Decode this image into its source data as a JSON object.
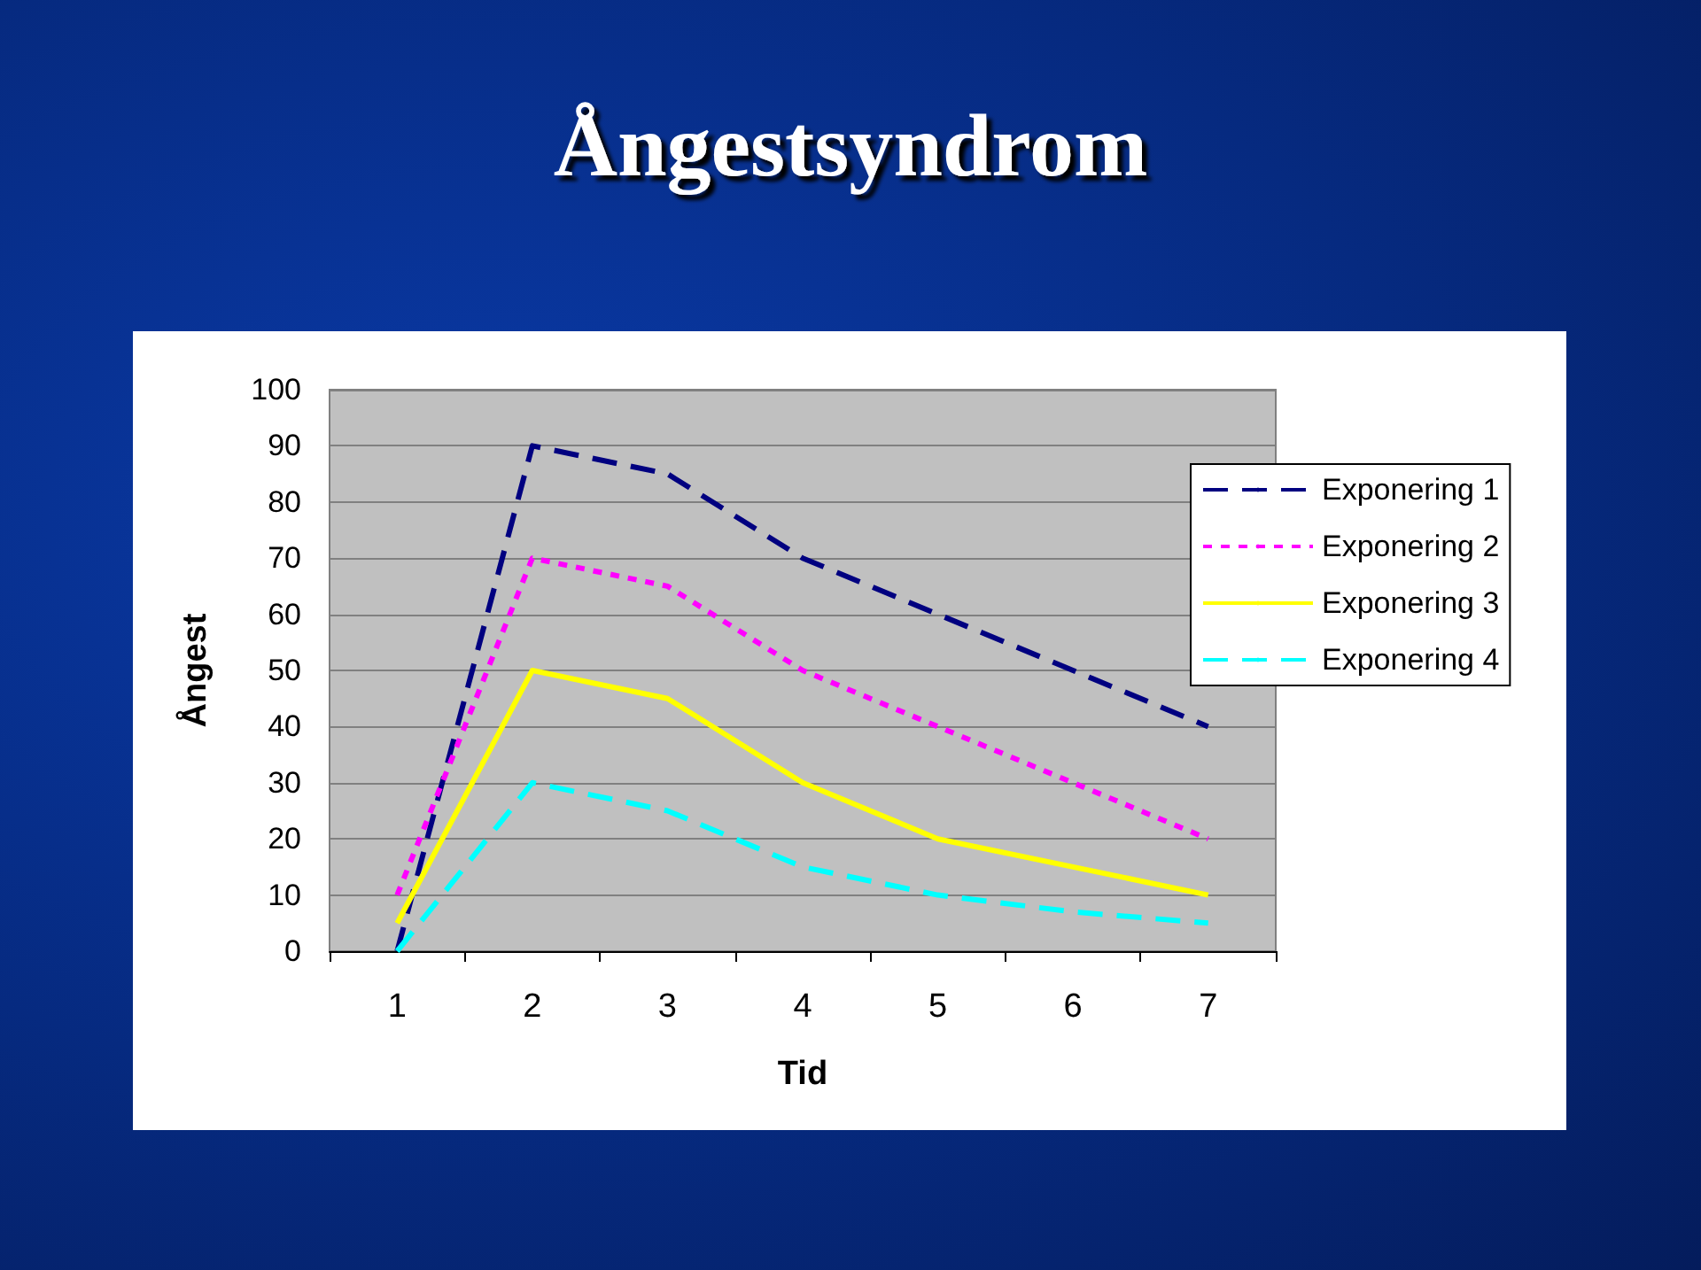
{
  "chart_data": {
    "type": "line",
    "title": "Ångestsyndrom",
    "xlabel": "Tid",
    "ylabel": "Ångest",
    "categories": [
      "1",
      "2",
      "3",
      "4",
      "5",
      "6",
      "7"
    ],
    "series": [
      {
        "name": "Exponering 1",
        "color": "#000080",
        "line_style": "dashed",
        "values": [
          0,
          90,
          85,
          70,
          60,
          50,
          40
        ]
      },
      {
        "name": "Exponering 2",
        "color": "#ff00ff",
        "line_style": "dotted",
        "values": [
          10,
          70,
          65,
          50,
          40,
          30,
          20
        ]
      },
      {
        "name": "Exponering 3",
        "color": "#ffff00",
        "line_style": "solid",
        "values": [
          5,
          50,
          45,
          30,
          20,
          15,
          10
        ]
      },
      {
        "name": "Exponering 4",
        "color": "#00ffff",
        "line_style": "dashed",
        "values": [
          0,
          30,
          25,
          15,
          10,
          7,
          5
        ]
      }
    ],
    "ylim": [
      0,
      100
    ],
    "yticks": [
      0,
      10,
      20,
      30,
      40,
      50,
      60,
      70,
      80,
      90,
      100
    ],
    "grid": "y",
    "legend": "right",
    "marker": "none"
  }
}
